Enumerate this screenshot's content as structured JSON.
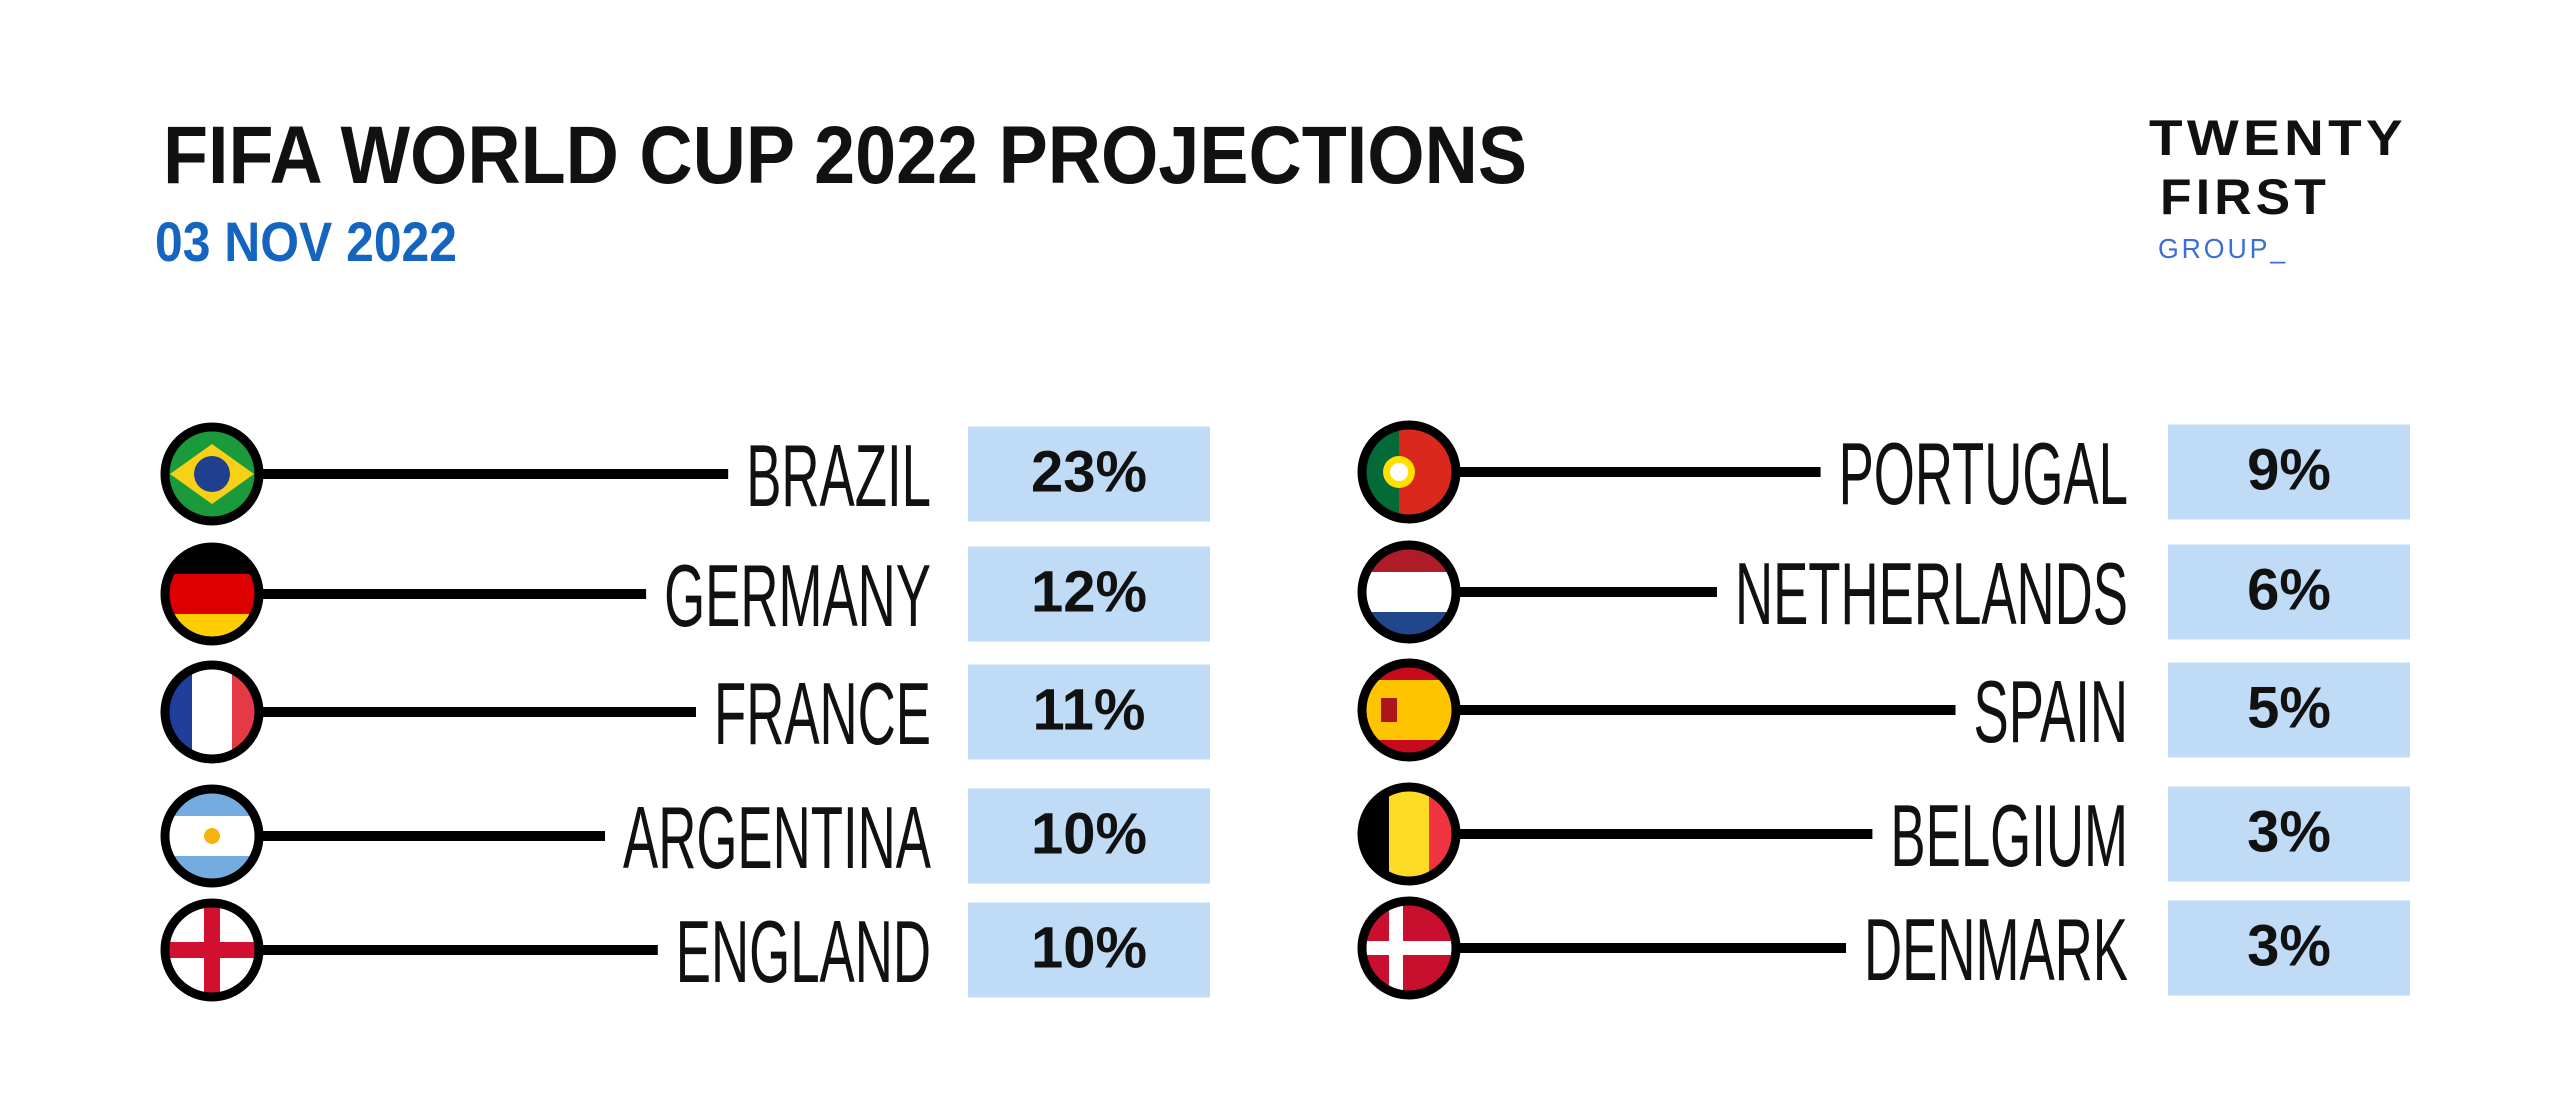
{
  "header": {
    "title": "FIFA WORLD CUP 2022 PROJECTIONS",
    "date": "03 NOV 2022"
  },
  "logo": {
    "line1": "TWENTY",
    "line2": "FIRST",
    "line3": "GROUP_"
  },
  "columns": [
    [
      {
        "country": "BRAZIL",
        "probability": "23%"
      },
      {
        "country": "GERMANY",
        "probability": "12%"
      },
      {
        "country": "FRANCE",
        "probability": "11%"
      },
      {
        "country": "ARGENTINA",
        "probability": "10%"
      },
      {
        "country": "ENGLAND",
        "probability": "10%"
      }
    ],
    [
      {
        "country": "PORTUGAL",
        "probability": "9%"
      },
      {
        "country": "NETHERLANDS",
        "probability": "6%"
      },
      {
        "country": "SPAIN",
        "probability": "5%"
      },
      {
        "country": "BELGIUM",
        "probability": "3%"
      },
      {
        "country": "DENMARK",
        "probability": "3%"
      }
    ]
  ]
}
